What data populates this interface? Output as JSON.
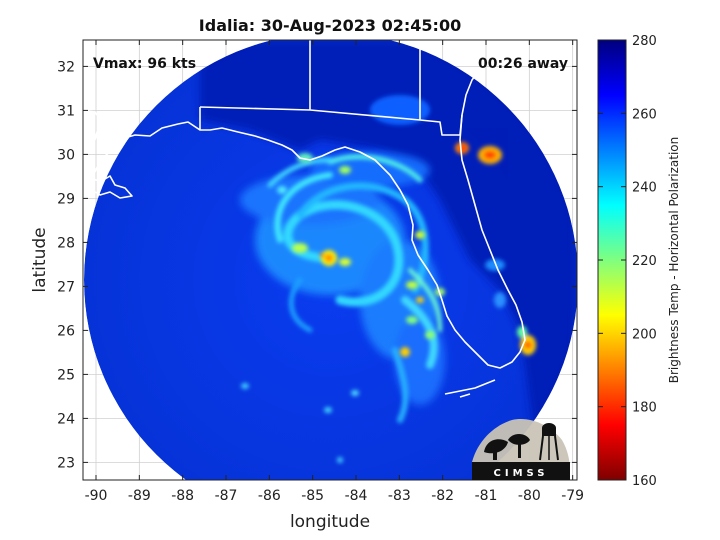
{
  "title": "Idalia: 30-Aug-2023 02:45:00",
  "annotations": {
    "vmax": "Vmax: 96 kts",
    "away": "00:26 away"
  },
  "axes": {
    "xlabel": "longitude",
    "ylabel": "latitude",
    "x_ticks": [
      "-90",
      "-89",
      "-88",
      "-87",
      "-86",
      "-85",
      "-84",
      "-83",
      "-82",
      "-81",
      "-80",
      "-79"
    ],
    "y_ticks": [
      "23",
      "24",
      "25",
      "26",
      "27",
      "28",
      "29",
      "30",
      "31",
      "32"
    ]
  },
  "colorbar": {
    "label": "Brightness Temp - Horizontal Polarization",
    "ticks": [
      "160",
      "180",
      "200",
      "220",
      "240",
      "260",
      "280"
    ],
    "colormap": "jet"
  },
  "logo": {
    "text": "CIMSS"
  },
  "chart_data": {
    "type": "heatmap",
    "title": "Idalia: 30-Aug-2023 02:45:00",
    "xlabel": "longitude",
    "ylabel": "latitude",
    "xlim": [
      -90.3,
      -78.9
    ],
    "ylim": [
      22.6,
      32.6
    ],
    "clim": [
      160,
      280
    ],
    "colormap": "jet",
    "colorbar_label": "Brightness Temp - Horizontal Polarization",
    "storm_center": {
      "lon": -84.6,
      "lat": 27.6
    },
    "features": [
      {
        "type": "eye",
        "lon": -84.6,
        "lat": 27.6,
        "min_tb": 205
      },
      {
        "type": "cold-cloud",
        "lon": -81.4,
        "lat": 30.1,
        "min_tb": 190
      },
      {
        "type": "cold-cloud",
        "lon": -81.0,
        "lat": 30.0,
        "min_tb": 200
      },
      {
        "type": "cold-cloud",
        "lon": -80.0,
        "lat": 25.7,
        "min_tb": 200
      },
      {
        "type": "rainband",
        "lon": -82.6,
        "lat": 27.0,
        "min_tb": 220
      },
      {
        "type": "rainband",
        "lon": -83.0,
        "lat": 25.5,
        "min_tb": 225
      }
    ],
    "background_tb": 265,
    "land_tb": 272
  }
}
